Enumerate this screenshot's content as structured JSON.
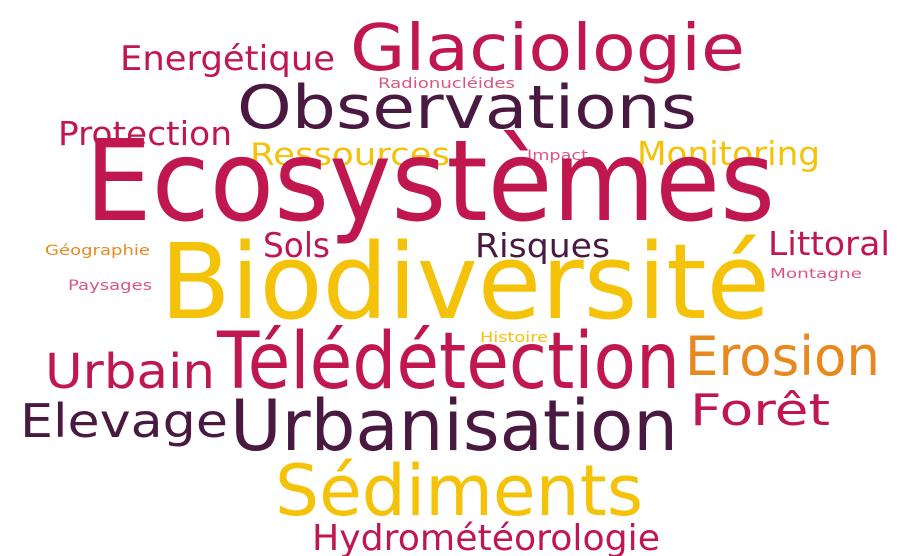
{
  "words": [
    "Glaciologie",
    "Energétique",
    "Radionucléides",
    "Observations",
    "Protection",
    "Ressources",
    "Impact",
    "Monitoring",
    "Ecosystèmes",
    "Sols",
    "Risques",
    "Littoral",
    "Géographie",
    "Paysages",
    "Montagne",
    "Biodiversité",
    "Histoire",
    "Urbain",
    "Télédétection",
    "Erosion",
    "Elevage",
    "Urbanisation",
    "Forêt",
    "Sédiments",
    "Hydrométéorologie"
  ]
}
